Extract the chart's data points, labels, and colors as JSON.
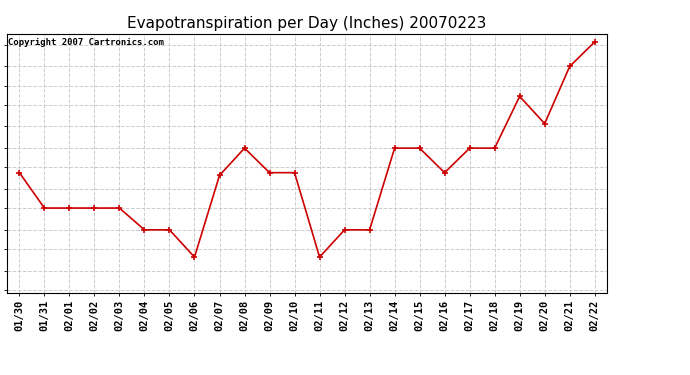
{
  "title": "Evapotranspiration per Day (Inches) 20070223",
  "copyright_text": "Copyright 2007 Cartronics.com",
  "x_labels": [
    "01/30",
    "01/31",
    "02/01",
    "02/02",
    "02/03",
    "02/04",
    "02/05",
    "02/06",
    "02/07",
    "02/08",
    "02/09",
    "02/10",
    "02/11",
    "02/12",
    "02/13",
    "02/14",
    "02/15",
    "02/16",
    "02/17",
    "02/18",
    "02/19",
    "02/20",
    "02/21",
    "02/22"
  ],
  "y_values": [
    0.043,
    0.03,
    0.03,
    0.03,
    0.03,
    0.022,
    0.022,
    0.012,
    0.042,
    0.052,
    0.043,
    0.043,
    0.012,
    0.022,
    0.022,
    0.052,
    0.052,
    0.043,
    0.052,
    0.052,
    0.071,
    0.061,
    0.082,
    0.091
  ],
  "line_color": "#cc0000",
  "marker": "+",
  "marker_size": 5,
  "marker_linewidth": 1.2,
  "ylim": [
    -0.001,
    0.094
  ],
  "yticks": [
    0.0,
    0.007,
    0.015,
    0.022,
    0.03,
    0.037,
    0.045,
    0.052,
    0.06,
    0.068,
    0.075,
    0.082,
    0.09
  ],
  "grid_color": "#cccccc",
  "grid_linestyle": "--",
  "bg_color": "#ffffff",
  "plot_bg_color": "#ffffff",
  "title_fontsize": 11,
  "tick_fontsize": 7.5,
  "copyright_fontsize": 6.5,
  "line_width": 1.2
}
